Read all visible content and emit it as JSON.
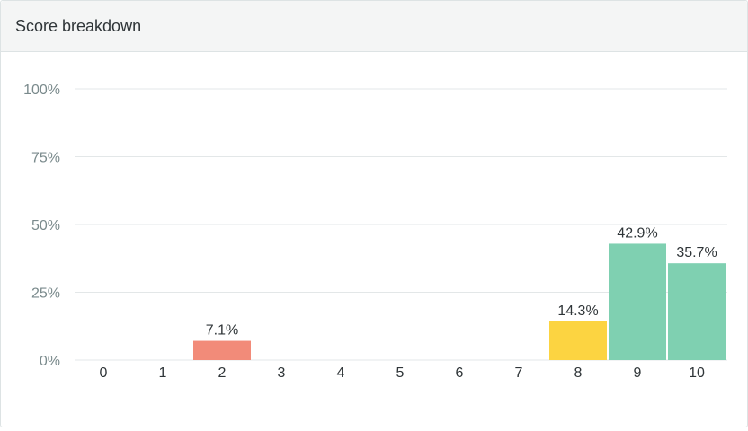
{
  "card": {
    "title": "Score breakdown"
  },
  "chart_data": {
    "type": "bar",
    "title": "",
    "xlabel": "",
    "ylabel": "",
    "categories": [
      "0",
      "1",
      "2",
      "3",
      "4",
      "5",
      "6",
      "7",
      "8",
      "9",
      "10"
    ],
    "values": [
      0,
      0,
      7.1,
      0,
      0,
      0,
      0,
      0,
      14.3,
      42.9,
      35.7
    ],
    "value_labels": [
      "",
      "",
      "7.1%",
      "",
      "",
      "",
      "",
      "",
      "14.3%",
      "42.9%",
      "35.7%"
    ],
    "bar_colors": [
      "#f28b79",
      "#f28b79",
      "#f28b79",
      "#f28b79",
      "#f28b79",
      "#f28b79",
      "#f28b79",
      "#fcd441",
      "#fcd441",
      "#7fd0b1",
      "#7fd0b1"
    ],
    "ylim": [
      0,
      100
    ],
    "yticks": [
      0,
      25,
      50,
      75,
      100
    ],
    "ytick_labels": [
      "0%",
      "25%",
      "50%",
      "75%",
      "100%"
    ],
    "grid": true,
    "legend": "none"
  },
  "colors": {
    "gridline": "#e3e7e8",
    "tick_label": "#7a8a8c",
    "category_label": "#2f3538",
    "value_label": "#2f3538"
  }
}
